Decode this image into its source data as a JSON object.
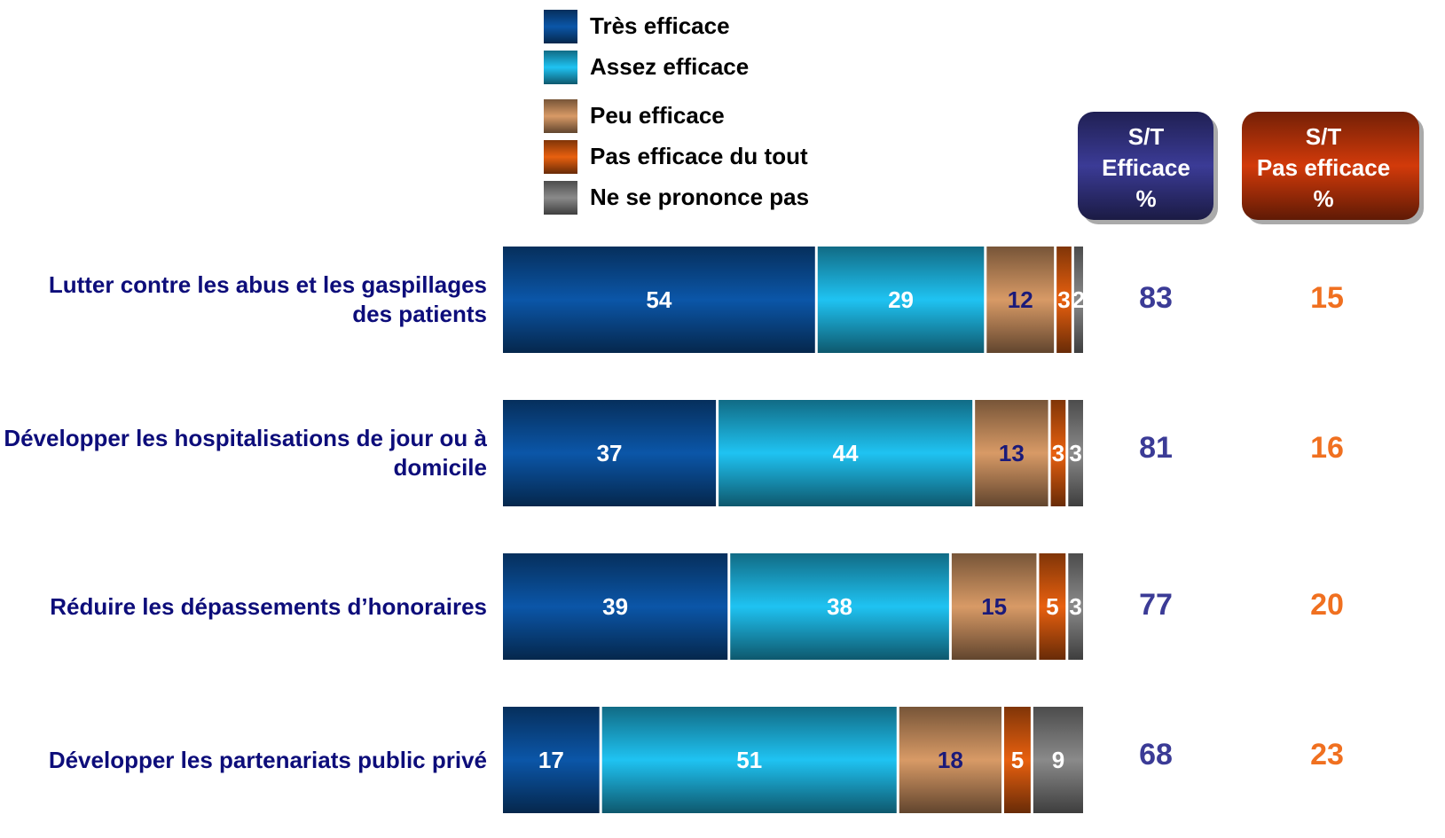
{
  "chart_data": {
    "type": "stacked_barh",
    "categories": [
      "Lutter contre les abus et les gaspillages des patients",
      "Développer les hospitalisations de jour ou à domicile",
      "Réduire les dépassements d’honoraires",
      "Développer les partenariats public privé"
    ],
    "series": [
      {
        "name": "Très efficace",
        "color": "#0b56a8",
        "values": [
          54,
          37,
          39,
          17
        ]
      },
      {
        "name": "Assez efficace",
        "color": "#1fc3f2",
        "values": [
          29,
          44,
          38,
          51
        ]
      },
      {
        "name": "Peu efficace",
        "color": "#d89a66",
        "values": [
          12,
          13,
          15,
          18
        ]
      },
      {
        "name": "Pas efficace du tout",
        "color": "#e8600f",
        "values": [
          3,
          3,
          5,
          5
        ]
      },
      {
        "name": "Ne se prononce pas",
        "color": "#8a8a8a",
        "values": [
          2,
          3,
          3,
          9
        ]
      }
    ],
    "xlim": [
      0,
      100
    ],
    "totals": [
      {
        "header": [
          "S/T",
          "Efficace",
          "%"
        ],
        "color": "#3b3b96",
        "values": [
          83,
          81,
          77,
          68
        ]
      },
      {
        "header": [
          "S/T",
          "Pas efficace",
          "%"
        ],
        "color": "#d23a0a",
        "values": [
          15,
          16,
          20,
          23
        ]
      }
    ]
  }
}
